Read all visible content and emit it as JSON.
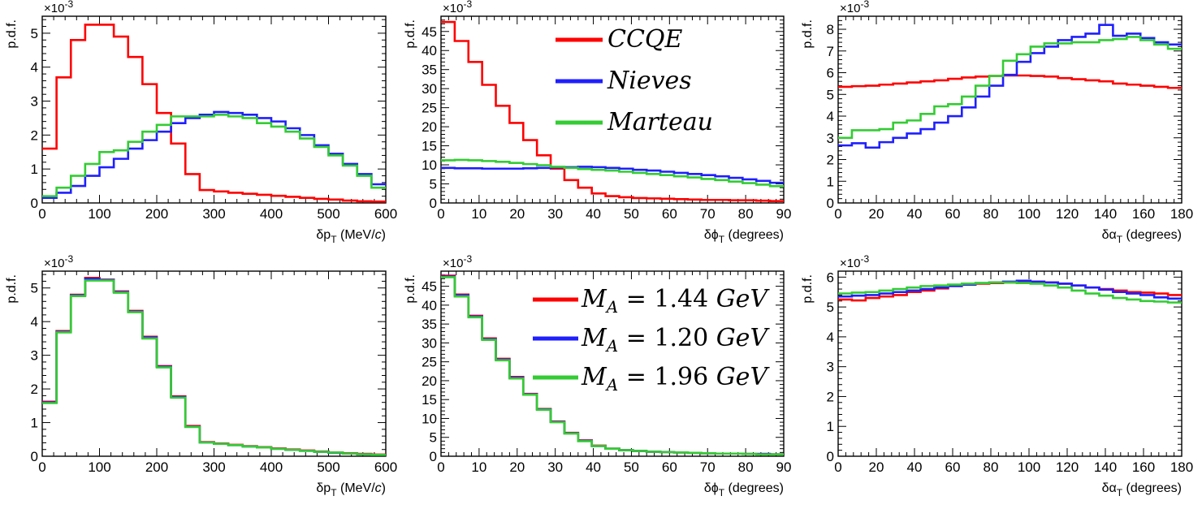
{
  "colors": {
    "red": "#ff0000",
    "blue": "#1f1fff",
    "green": "#33cc33"
  },
  "chart_data": [
    {
      "type": "histogram",
      "title": "",
      "xlabel_main": "δp",
      "xlabel_sub": "T",
      "xlabel_unit": " (MeV/",
      "xlabel_c": "c",
      "xlabel_close": ")",
      "ylabel": "p.d.f.",
      "exponent": "×10",
      "exponent_power": "-3",
      "xlim": [
        0,
        600
      ],
      "ylim": [
        0,
        5.5
      ],
      "xticks": [
        0,
        100,
        200,
        300,
        400,
        500,
        600
      ],
      "yticks": [
        0,
        1,
        2,
        3,
        4,
        5
      ],
      "bins": 24,
      "series": [
        {
          "name": "CCQE",
          "color": "#ff0000",
          "values": [
            1.6,
            3.7,
            4.8,
            5.25,
            5.25,
            4.9,
            4.3,
            3.5,
            2.65,
            1.75,
            0.85,
            0.38,
            0.34,
            0.3,
            0.27,
            0.24,
            0.21,
            0.18,
            0.15,
            0.12,
            0.1,
            0.07,
            0.05,
            0.04
          ]
        },
        {
          "name": "Nieves",
          "color": "#1f1fff",
          "values": [
            0.15,
            0.3,
            0.5,
            0.8,
            1.05,
            1.3,
            1.6,
            1.85,
            2.1,
            2.35,
            2.5,
            2.6,
            2.68,
            2.65,
            2.6,
            2.5,
            2.4,
            2.2,
            2.0,
            1.7,
            1.45,
            1.15,
            0.85,
            0.55
          ]
        },
        {
          "name": "Marteau",
          "color": "#33cc33",
          "values": [
            0.2,
            0.45,
            0.8,
            1.15,
            1.5,
            1.55,
            1.8,
            2.1,
            2.3,
            2.55,
            2.55,
            2.55,
            2.6,
            2.55,
            2.5,
            2.35,
            2.25,
            2.1,
            1.9,
            1.65,
            1.4,
            1.1,
            0.8,
            0.45
          ]
        }
      ]
    },
    {
      "type": "histogram",
      "title": "",
      "xlabel_main": "δϕ",
      "xlabel_sub": "T",
      "xlabel_unit": " (degrees)",
      "ylabel": "p.d.f.",
      "exponent": "×10",
      "exponent_power": "-3",
      "xlim": [
        0,
        90
      ],
      "ylim": [
        0,
        49
      ],
      "xticks": [
        0,
        10,
        20,
        30,
        40,
        50,
        60,
        70,
        80,
        90
      ],
      "yticks": [
        0,
        5,
        10,
        15,
        20,
        25,
        30,
        35,
        40,
        45
      ],
      "bins": 25,
      "series": [
        {
          "name": "CCQE",
          "color": "#ff0000",
          "values": [
            47.5,
            42.5,
            37,
            31,
            25.5,
            21,
            16.5,
            12.5,
            9,
            6,
            4,
            2.5,
            1.8,
            1.5,
            1.3,
            1.2,
            1.1,
            1.0,
            0.9,
            0.8,
            0.8,
            0.7,
            0.7,
            0.6,
            0.5
          ]
        },
        {
          "name": "Nieves",
          "color": "#1f1fff",
          "values": [
            9.2,
            9.1,
            9.1,
            9.0,
            9.0,
            9.0,
            9.1,
            9.2,
            9.3,
            9.4,
            9.5,
            9.4,
            9.2,
            9.0,
            8.7,
            8.5,
            8.2,
            7.9,
            7.6,
            7.3,
            7.0,
            6.6,
            6.2,
            5.8,
            5.3
          ]
        },
        {
          "name": "Marteau",
          "color": "#33cc33",
          "values": [
            11.2,
            11.3,
            11.2,
            11.0,
            10.8,
            10.5,
            10.2,
            9.9,
            9.5,
            9.2,
            8.9,
            8.7,
            8.5,
            8.2,
            7.9,
            7.6,
            7.3,
            7.0,
            6.7,
            6.3,
            6.0,
            5.6,
            5.2,
            4.8,
            4.4
          ]
        }
      ],
      "legend": [
        "CCQE",
        "Nieves",
        "Marteau"
      ]
    },
    {
      "type": "histogram",
      "title": "",
      "xlabel_main": "δα",
      "xlabel_sub": "T",
      "xlabel_unit": " (degrees)",
      "ylabel": "p.d.f.",
      "exponent": "×10",
      "exponent_power": "-3",
      "xlim": [
        0,
        180
      ],
      "ylim": [
        0,
        8.6
      ],
      "xticks": [
        0,
        20,
        40,
        60,
        80,
        100,
        120,
        140,
        160,
        180
      ],
      "yticks": [
        0,
        1,
        2,
        3,
        4,
        5,
        6,
        7,
        8
      ],
      "bins": 25,
      "series": [
        {
          "name": "CCQE",
          "color": "#ff0000",
          "values": [
            5.35,
            5.38,
            5.4,
            5.45,
            5.5,
            5.55,
            5.6,
            5.65,
            5.72,
            5.78,
            5.82,
            5.85,
            5.87,
            5.87,
            5.85,
            5.82,
            5.75,
            5.7,
            5.65,
            5.6,
            5.5,
            5.45,
            5.4,
            5.35,
            5.3
          ]
        },
        {
          "name": "Nieves",
          "color": "#1f1fff",
          "values": [
            2.65,
            2.75,
            2.55,
            2.8,
            3.0,
            3.2,
            3.4,
            3.7,
            4.0,
            4.4,
            4.9,
            5.4,
            5.9,
            6.5,
            6.9,
            7.2,
            7.5,
            7.65,
            7.8,
            8.2,
            7.7,
            7.8,
            7.6,
            7.4,
            7.3
          ]
        },
        {
          "name": "Marteau",
          "color": "#33cc33",
          "values": [
            3.0,
            3.35,
            3.35,
            3.4,
            3.7,
            3.8,
            4.1,
            4.45,
            4.55,
            4.9,
            5.4,
            5.85,
            6.55,
            6.85,
            7.2,
            7.35,
            7.35,
            7.4,
            7.4,
            7.5,
            7.55,
            7.65,
            7.5,
            7.3,
            7.1
          ]
        }
      ]
    },
    {
      "type": "histogram",
      "title": "",
      "xlabel_main": "δp",
      "xlabel_sub": "T",
      "xlabel_unit": " (MeV/",
      "xlabel_c": "c",
      "xlabel_close": ")",
      "ylabel": "p.d.f.",
      "exponent": "×10",
      "exponent_power": "-3",
      "xlim": [
        0,
        600
      ],
      "ylim": [
        0,
        5.5
      ],
      "xticks": [
        0,
        100,
        200,
        300,
        400,
        500,
        600
      ],
      "yticks": [
        0,
        1,
        2,
        3,
        4,
        5
      ],
      "bins": 24,
      "series": [
        {
          "name": "M_A = 1.44 GeV",
          "color": "#ff0000",
          "values": [
            1.62,
            3.72,
            4.8,
            5.3,
            5.25,
            4.9,
            4.32,
            3.55,
            2.68,
            1.78,
            0.9,
            0.42,
            0.38,
            0.34,
            0.3,
            0.27,
            0.23,
            0.2,
            0.17,
            0.14,
            0.11,
            0.09,
            0.07,
            0.05
          ]
        },
        {
          "name": "M_A = 1.20 GeV",
          "color": "#1f1fff",
          "values": [
            1.6,
            3.7,
            4.78,
            5.27,
            5.24,
            4.88,
            4.3,
            3.53,
            2.66,
            1.76,
            0.88,
            0.41,
            0.37,
            0.33,
            0.29,
            0.26,
            0.22,
            0.19,
            0.16,
            0.13,
            0.1,
            0.08,
            0.06,
            0.04
          ]
        },
        {
          "name": "M_A = 1.96 GeV",
          "color": "#33cc33",
          "values": [
            1.58,
            3.68,
            4.76,
            5.22,
            5.22,
            4.86,
            4.28,
            3.5,
            2.64,
            1.74,
            0.87,
            0.41,
            0.37,
            0.33,
            0.29,
            0.26,
            0.22,
            0.19,
            0.16,
            0.13,
            0.11,
            0.08,
            0.06,
            0.04
          ]
        }
      ]
    },
    {
      "type": "histogram",
      "title": "",
      "xlabel_main": "δϕ",
      "xlabel_sub": "T",
      "xlabel_unit": " (degrees)",
      "ylabel": "p.d.f.",
      "exponent": "×10",
      "exponent_power": "-3",
      "xlim": [
        0,
        90
      ],
      "ylim": [
        0,
        49
      ],
      "xticks": [
        0,
        10,
        20,
        30,
        40,
        50,
        60,
        70,
        80,
        90
      ],
      "yticks": [
        0,
        5,
        10,
        15,
        20,
        25,
        30,
        35,
        40,
        45
      ],
      "bins": 25,
      "series": [
        {
          "name": "M_A = 1.44 GeV",
          "color": "#ff0000",
          "values": [
            47.8,
            42.8,
            37.2,
            31.2,
            25.8,
            21.0,
            16.5,
            12.5,
            9.2,
            6.2,
            4.2,
            2.8,
            2.0,
            1.6,
            1.4,
            1.2,
            1.1,
            1.0,
            0.9,
            0.8,
            0.7,
            0.7,
            0.6,
            0.6,
            0.5
          ]
        },
        {
          "name": "M_A = 1.20 GeV",
          "color": "#1f1fff",
          "values": [
            47.6,
            42.6,
            37.0,
            31.0,
            25.6,
            20.8,
            16.4,
            12.4,
            9.1,
            6.1,
            4.1,
            2.7,
            2.0,
            1.6,
            1.4,
            1.2,
            1.1,
            1.0,
            0.9,
            0.8,
            0.7,
            0.7,
            0.6,
            0.6,
            0.5
          ]
        },
        {
          "name": "M_A = 1.96 GeV",
          "color": "#33cc33",
          "values": [
            47.4,
            42.3,
            36.8,
            30.8,
            25.4,
            20.6,
            16.3,
            12.3,
            9.0,
            6.0,
            4.0,
            2.7,
            2.0,
            1.6,
            1.4,
            1.2,
            1.1,
            1.0,
            0.9,
            0.8,
            0.7,
            0.7,
            0.6,
            0.5,
            0.5
          ]
        }
      ],
      "legend": [
        "M_A = 1.44 GeV",
        "M_A = 1.20 GeV",
        "M_A = 1.96 GeV"
      ],
      "legend_math": [
        {
          "m": "M",
          "sub": "A",
          "eq": " = 1.44 ",
          "unit": "GeV"
        },
        {
          "m": "M",
          "sub": "A",
          "eq": " = 1.20 ",
          "unit": "GeV"
        },
        {
          "m": "M",
          "sub": "A",
          "eq": " = 1.96 ",
          "unit": "GeV"
        }
      ]
    },
    {
      "type": "histogram",
      "title": "",
      "xlabel_main": "δα",
      "xlabel_sub": "T",
      "xlabel_unit": " (degrees)",
      "ylabel": "p.d.f.",
      "exponent": "×10",
      "exponent_power": "-3",
      "xlim": [
        0,
        180
      ],
      "ylim": [
        0,
        6.2
      ],
      "xticks": [
        0,
        20,
        40,
        60,
        80,
        100,
        120,
        140,
        160,
        180
      ],
      "yticks": [
        0,
        1,
        2,
        3,
        4,
        5,
        6
      ],
      "bins": 25,
      "series": [
        {
          "name": "M_A = 1.44 GeV",
          "color": "#ff0000",
          "values": [
            5.25,
            5.22,
            5.3,
            5.35,
            5.4,
            5.5,
            5.55,
            5.62,
            5.7,
            5.75,
            5.78,
            5.8,
            5.82,
            5.85,
            5.85,
            5.82,
            5.78,
            5.72,
            5.65,
            5.6,
            5.55,
            5.5,
            5.48,
            5.45,
            5.4
          ]
        },
        {
          "name": "M_A = 1.20 GeV",
          "color": "#1f1fff",
          "values": [
            5.35,
            5.38,
            5.4,
            5.45,
            5.5,
            5.55,
            5.6,
            5.65,
            5.7,
            5.75,
            5.8,
            5.82,
            5.85,
            5.88,
            5.85,
            5.82,
            5.78,
            5.72,
            5.65,
            5.58,
            5.5,
            5.45,
            5.4,
            5.32,
            5.28
          ]
        },
        {
          "name": "M_A = 1.96 GeV",
          "color": "#33cc33",
          "values": [
            5.45,
            5.48,
            5.5,
            5.55,
            5.6,
            5.65,
            5.7,
            5.72,
            5.75,
            5.78,
            5.8,
            5.82,
            5.82,
            5.8,
            5.78,
            5.72,
            5.65,
            5.55,
            5.45,
            5.38,
            5.3,
            5.25,
            5.2,
            5.18,
            5.15
          ]
        }
      ]
    }
  ]
}
